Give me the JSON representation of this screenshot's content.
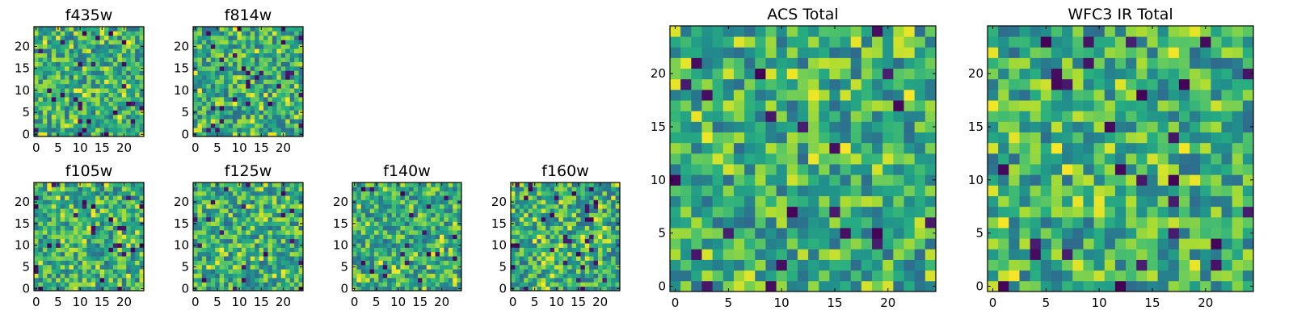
{
  "chart_data": [
    {
      "type": "heatmap",
      "title": "f435w",
      "xlabel": "",
      "ylabel": "",
      "xlim": [
        -0.5,
        24.5
      ],
      "ylim": [
        -0.5,
        24.5
      ],
      "x_ticks": [
        0,
        5,
        10,
        15,
        20
      ],
      "y_ticks": [
        0,
        5,
        10,
        15,
        20
      ],
      "grid_size": 25,
      "colormap": "viridis",
      "seed": 11,
      "grid": false,
      "legend": "none"
    },
    {
      "type": "heatmap",
      "title": "f814w",
      "xlabel": "",
      "ylabel": "",
      "xlim": [
        -0.5,
        24.5
      ],
      "ylim": [
        -0.5,
        24.5
      ],
      "x_ticks": [
        0,
        5,
        10,
        15,
        20
      ],
      "y_ticks": [
        0,
        5,
        10,
        15,
        20
      ],
      "grid_size": 25,
      "colormap": "viridis",
      "seed": 23,
      "grid": false,
      "legend": "none"
    },
    {
      "type": "heatmap",
      "title": "f105w",
      "xlabel": "",
      "ylabel": "",
      "xlim": [
        -0.5,
        24.5
      ],
      "ylim": [
        -0.5,
        24.5
      ],
      "x_ticks": [
        0,
        5,
        10,
        15,
        20
      ],
      "y_ticks": [
        0,
        5,
        10,
        15,
        20
      ],
      "grid_size": 25,
      "colormap": "viridis",
      "seed": 37,
      "grid": false,
      "legend": "none"
    },
    {
      "type": "heatmap",
      "title": "f125w",
      "xlabel": "",
      "ylabel": "",
      "xlim": [
        -0.5,
        24.5
      ],
      "ylim": [
        -0.5,
        24.5
      ],
      "x_ticks": [
        0,
        5,
        10,
        15,
        20
      ],
      "y_ticks": [
        0,
        5,
        10,
        15,
        20
      ],
      "grid_size": 25,
      "colormap": "viridis",
      "seed": 41,
      "grid": false,
      "legend": "none"
    },
    {
      "type": "heatmap",
      "title": "f140w",
      "xlabel": "",
      "ylabel": "",
      "xlim": [
        -0.5,
        24.5
      ],
      "ylim": [
        -0.5,
        24.5
      ],
      "x_ticks": [
        0,
        5,
        10,
        15,
        20
      ],
      "y_ticks": [
        0,
        5,
        10,
        15,
        20
      ],
      "grid_size": 25,
      "colormap": "viridis",
      "seed": 53,
      "grid": false,
      "legend": "none"
    },
    {
      "type": "heatmap",
      "title": "f160w",
      "xlabel": "",
      "ylabel": "",
      "xlim": [
        -0.5,
        24.5
      ],
      "ylim": [
        -0.5,
        24.5
      ],
      "x_ticks": [
        0,
        5,
        10,
        15,
        20
      ],
      "y_ticks": [
        0,
        5,
        10,
        15,
        20
      ],
      "grid_size": 25,
      "colormap": "viridis",
      "seed": 67,
      "grid": false,
      "legend": "none"
    },
    {
      "type": "heatmap",
      "title": "ACS Total",
      "xlabel": "",
      "ylabel": "",
      "xlim": [
        -0.5,
        24.5
      ],
      "ylim": [
        -0.5,
        24.5
      ],
      "x_ticks": [
        0,
        5,
        10,
        15,
        20
      ],
      "y_ticks": [
        0,
        5,
        10,
        15,
        20
      ],
      "grid_size": 25,
      "colormap": "viridis",
      "seed": 79,
      "grid": false,
      "legend": "none"
    },
    {
      "type": "heatmap",
      "title": "WFC3 IR Total",
      "xlabel": "",
      "ylabel": "",
      "xlim": [
        -0.5,
        24.5
      ],
      "ylim": [
        -0.5,
        24.5
      ],
      "x_ticks": [
        0,
        5,
        10,
        15,
        20
      ],
      "y_ticks": [
        0,
        5,
        10,
        15,
        20
      ],
      "grid_size": 25,
      "colormap": "viridis",
      "seed": 97,
      "grid": false,
      "legend": "none"
    }
  ]
}
